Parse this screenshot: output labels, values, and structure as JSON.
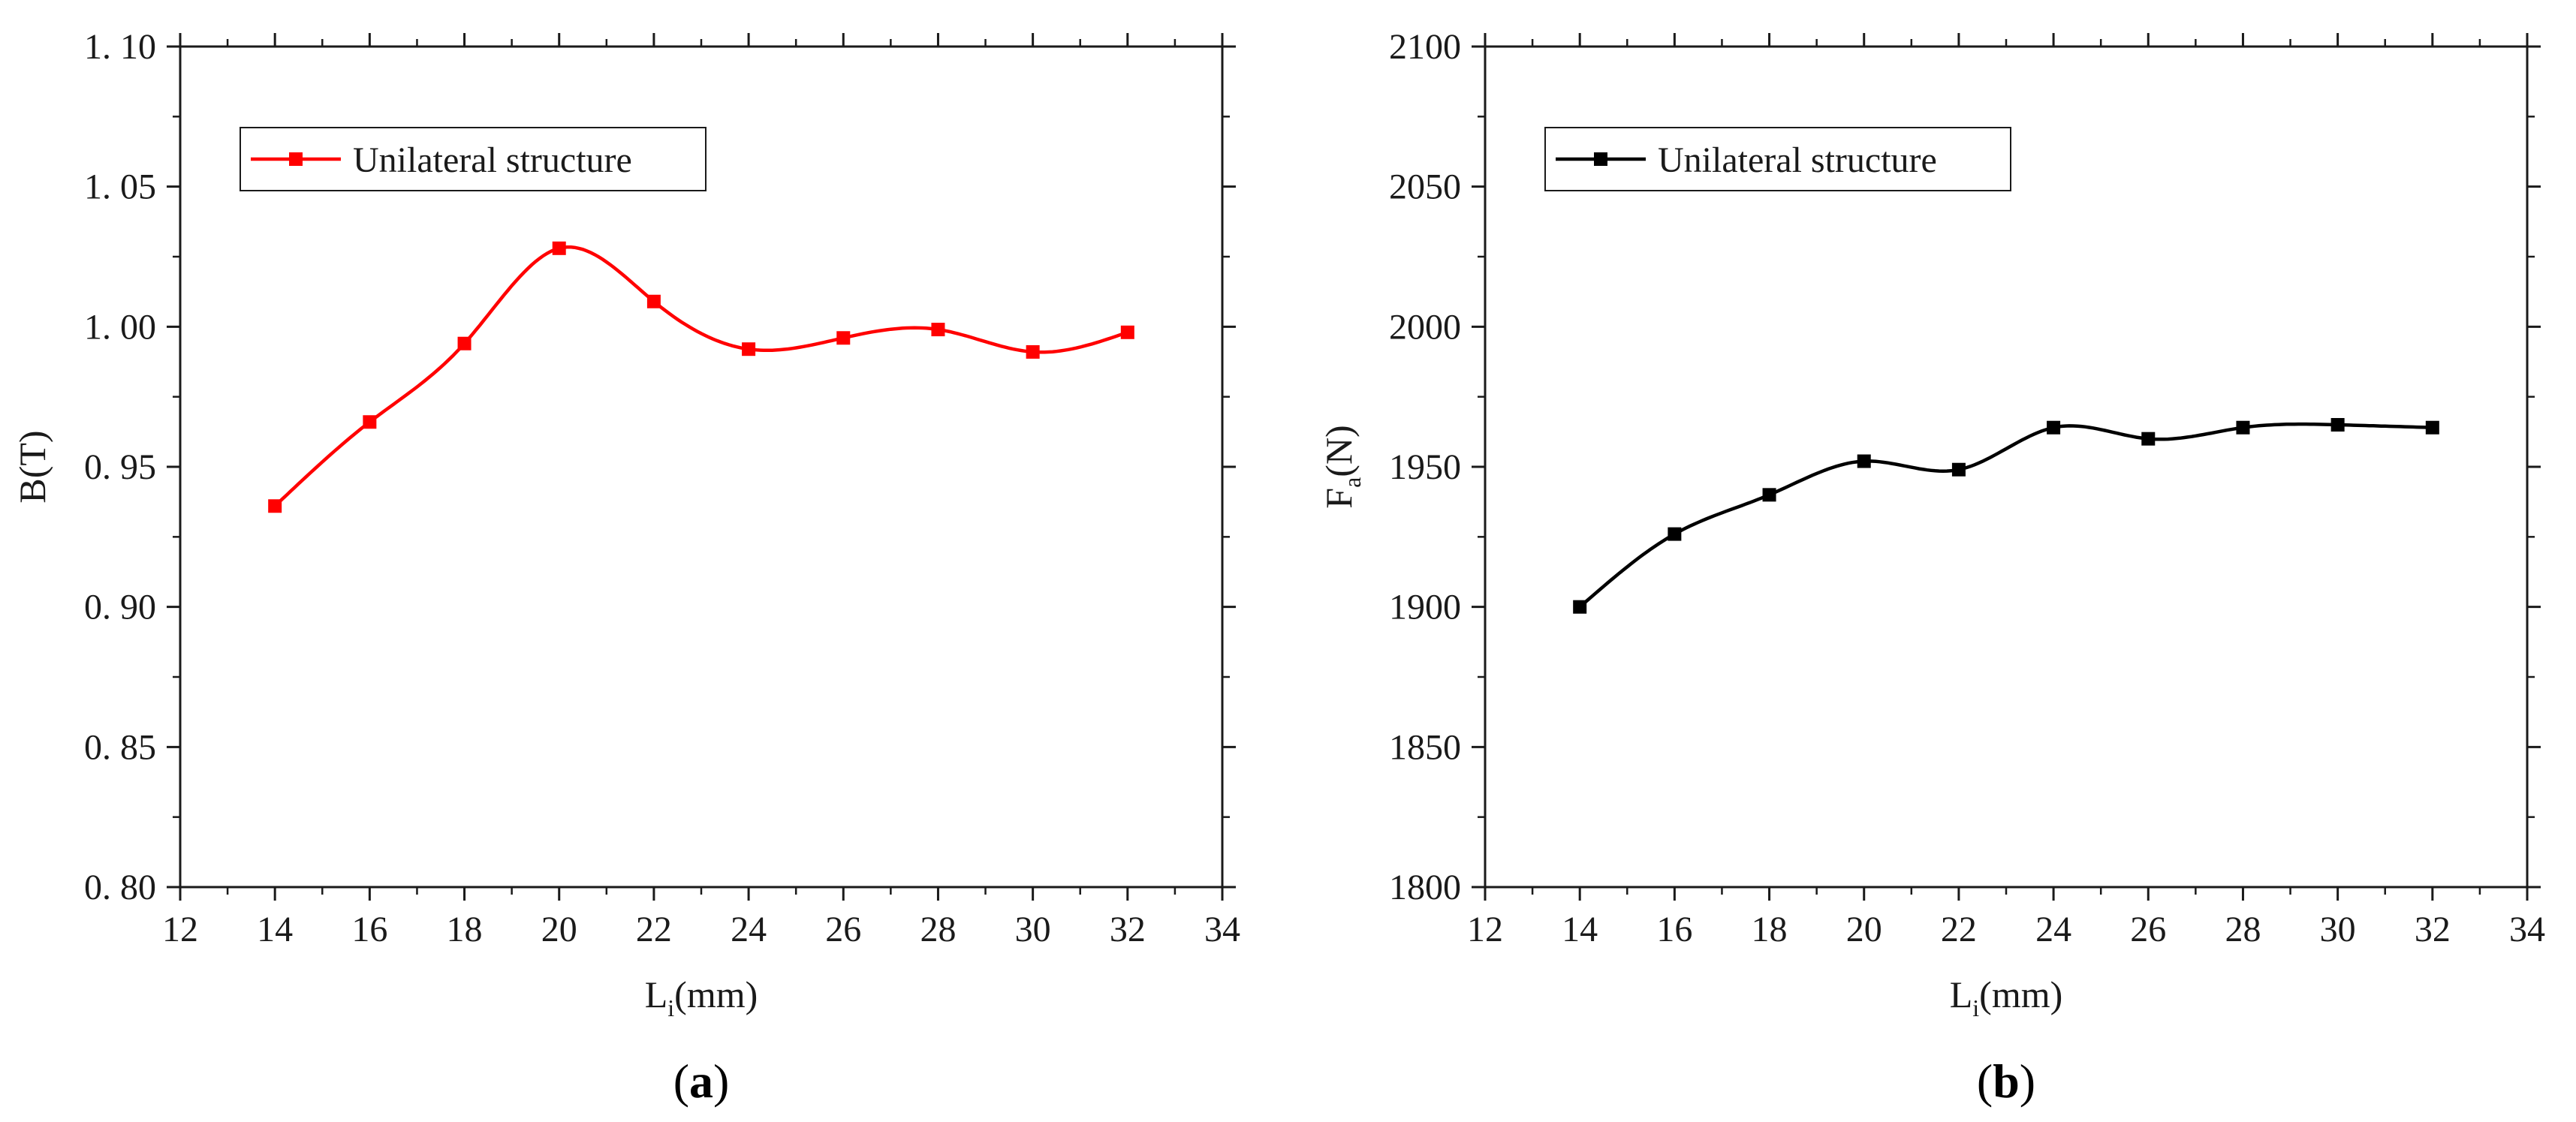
{
  "chart_data": [
    {
      "type": "line",
      "panel_label": "a",
      "caption_open": "(",
      "caption_close": ")",
      "xlabel": {
        "main": "L",
        "sub": "i",
        "rest": "(mm)"
      },
      "ylabel": {
        "main": "B(T)",
        "sub": "",
        "rest": ""
      },
      "xlim": [
        12,
        34
      ],
      "ylim": [
        0.8,
        1.1
      ],
      "xticks": [
        12,
        14,
        16,
        18,
        20,
        22,
        24,
        26,
        28,
        30,
        32,
        34
      ],
      "xtick_labels": [
        "12",
        "14",
        "16",
        "18",
        "20",
        "22",
        "24",
        "26",
        "28",
        "30",
        "32",
        "34"
      ],
      "yticks": [
        0.8,
        0.85,
        0.9,
        0.95,
        1.0,
        1.05,
        1.1
      ],
      "ytick_labels": [
        "0. 80",
        "0. 85",
        "0. 90",
        "0. 95",
        "1. 00",
        "1. 05",
        "1. 10"
      ],
      "legend": {
        "position": "top-left",
        "entries": [
          "Unilateral structure"
        ]
      },
      "series": [
        {
          "name": "Unilateral structure",
          "color": "#ff0000",
          "x": [
            14,
            16,
            18,
            20,
            22,
            24,
            26,
            28,
            30,
            32
          ],
          "y": [
            0.936,
            0.966,
            0.994,
            1.028,
            1.009,
            0.992,
            0.996,
            0.999,
            0.991,
            0.998
          ]
        }
      ]
    },
    {
      "type": "line",
      "panel_label": "b",
      "caption_open": "(",
      "caption_close": ")",
      "xlabel": {
        "main": "L",
        "sub": "i",
        "rest": "(mm)"
      },
      "ylabel": {
        "main": "F",
        "sub": "a",
        "rest": "(N)"
      },
      "xlim": [
        12,
        34
      ],
      "ylim": [
        1800,
        2100
      ],
      "xticks": [
        12,
        14,
        16,
        18,
        20,
        22,
        24,
        26,
        28,
        30,
        32,
        34
      ],
      "xtick_labels": [
        "12",
        "14",
        "16",
        "18",
        "20",
        "22",
        "24",
        "26",
        "28",
        "30",
        "32",
        "34"
      ],
      "yticks": [
        1800,
        1850,
        1900,
        1950,
        2000,
        2050,
        2100
      ],
      "ytick_labels": [
        "1800",
        "1850",
        "1900",
        "1950",
        "2000",
        "2050",
        "2100"
      ],
      "legend": {
        "position": "top-left",
        "entries": [
          "Unilateral structure"
        ]
      },
      "series": [
        {
          "name": "Unilateral structure",
          "color": "#000000",
          "x": [
            14,
            16,
            18,
            20,
            22,
            24,
            26,
            28,
            30,
            32
          ],
          "y": [
            1900,
            1926,
            1940,
            1952,
            1949,
            1964,
            1960,
            1964,
            1965,
            1964
          ]
        }
      ]
    }
  ]
}
